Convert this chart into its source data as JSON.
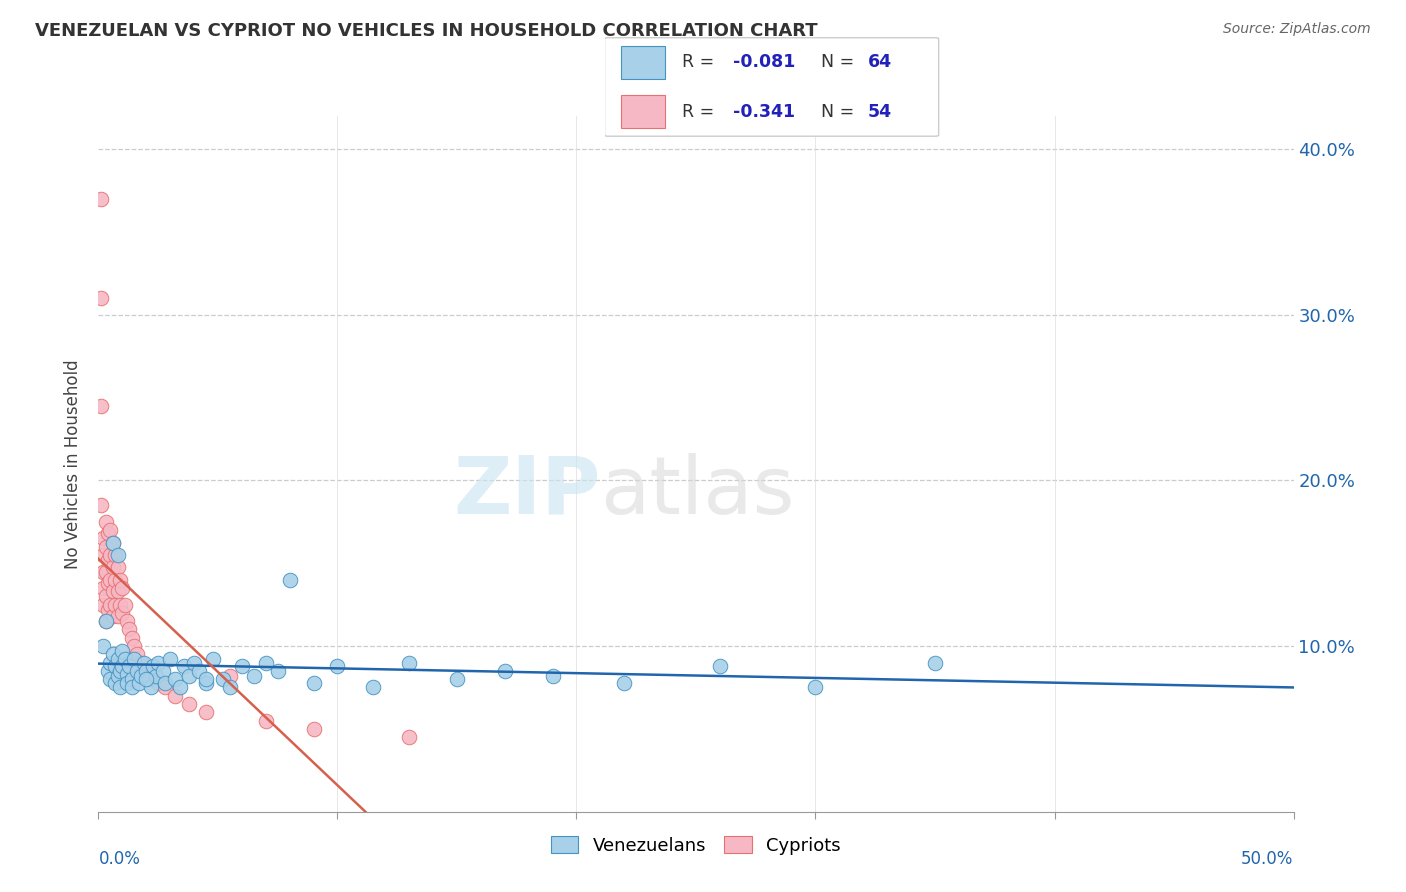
{
  "title": "VENEZUELAN VS CYPRIOT NO VEHICLES IN HOUSEHOLD CORRELATION CHART",
  "source": "Source: ZipAtlas.com",
  "ylabel": "No Vehicles in Household",
  "xlim": [
    0.0,
    0.5
  ],
  "ylim": [
    0.0,
    0.42
  ],
  "blue_color": "#a8d0e8",
  "pink_color": "#f5b8c4",
  "blue_line_color": "#2166ac",
  "pink_line_color": "#d6604d",
  "blue_edge_color": "#4393c3",
  "pink_edge_color": "#e87070",
  "legend_r_color": "#2222bb",
  "venezuelan_x": [
    0.002,
    0.003,
    0.004,
    0.005,
    0.005,
    0.006,
    0.007,
    0.007,
    0.008,
    0.008,
    0.009,
    0.009,
    0.01,
    0.01,
    0.011,
    0.012,
    0.012,
    0.013,
    0.014,
    0.014,
    0.015,
    0.016,
    0.017,
    0.018,
    0.019,
    0.02,
    0.021,
    0.022,
    0.023,
    0.024,
    0.025,
    0.027,
    0.028,
    0.03,
    0.032,
    0.034,
    0.036,
    0.038,
    0.04,
    0.042,
    0.045,
    0.048,
    0.052,
    0.055,
    0.06,
    0.065,
    0.07,
    0.075,
    0.08,
    0.09,
    0.1,
    0.115,
    0.13,
    0.15,
    0.17,
    0.19,
    0.22,
    0.26,
    0.3,
    0.35,
    0.006,
    0.008,
    0.02,
    0.045
  ],
  "venezuelan_y": [
    0.1,
    0.115,
    0.085,
    0.09,
    0.08,
    0.095,
    0.078,
    0.088,
    0.082,
    0.092,
    0.075,
    0.085,
    0.097,
    0.088,
    0.092,
    0.083,
    0.078,
    0.088,
    0.08,
    0.075,
    0.092,
    0.085,
    0.078,
    0.082,
    0.09,
    0.085,
    0.08,
    0.075,
    0.088,
    0.082,
    0.09,
    0.085,
    0.078,
    0.092,
    0.08,
    0.075,
    0.088,
    0.082,
    0.09,
    0.085,
    0.078,
    0.092,
    0.08,
    0.075,
    0.088,
    0.082,
    0.09,
    0.085,
    0.14,
    0.078,
    0.088,
    0.075,
    0.09,
    0.08,
    0.085,
    0.082,
    0.078,
    0.088,
    0.075,
    0.09,
    0.162,
    0.155,
    0.08,
    0.08
  ],
  "cypriot_x": [
    0.001,
    0.001,
    0.001,
    0.001,
    0.002,
    0.002,
    0.002,
    0.002,
    0.002,
    0.003,
    0.003,
    0.003,
    0.003,
    0.003,
    0.004,
    0.004,
    0.004,
    0.004,
    0.005,
    0.005,
    0.005,
    0.005,
    0.006,
    0.006,
    0.006,
    0.006,
    0.007,
    0.007,
    0.007,
    0.008,
    0.008,
    0.008,
    0.009,
    0.009,
    0.01,
    0.01,
    0.011,
    0.012,
    0.013,
    0.014,
    0.015,
    0.016,
    0.018,
    0.02,
    0.022,
    0.025,
    0.028,
    0.032,
    0.038,
    0.045,
    0.055,
    0.07,
    0.09,
    0.13
  ],
  "cypriot_y": [
    0.37,
    0.31,
    0.245,
    0.185,
    0.165,
    0.155,
    0.145,
    0.135,
    0.125,
    0.175,
    0.16,
    0.145,
    0.13,
    0.115,
    0.168,
    0.152,
    0.138,
    0.122,
    0.17,
    0.155,
    0.14,
    0.125,
    0.162,
    0.148,
    0.133,
    0.118,
    0.155,
    0.14,
    0.125,
    0.148,
    0.133,
    0.118,
    0.14,
    0.125,
    0.135,
    0.12,
    0.125,
    0.115,
    0.11,
    0.105,
    0.1,
    0.095,
    0.09,
    0.085,
    0.082,
    0.078,
    0.075,
    0.07,
    0.065,
    0.06,
    0.082,
    0.055,
    0.05,
    0.045
  ]
}
